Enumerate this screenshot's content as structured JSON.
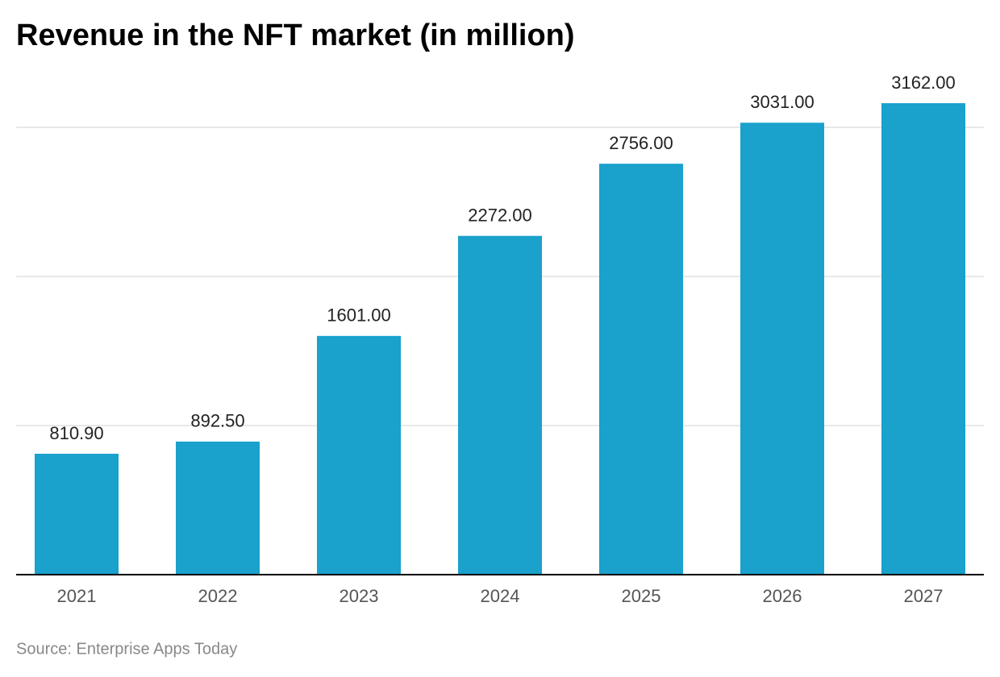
{
  "chart_data": {
    "type": "bar",
    "title": "Revenue in the NFT market (in million)",
    "categories": [
      "2021",
      "2022",
      "2023",
      "2024",
      "2025",
      "2026",
      "2027"
    ],
    "values": [
      810.9,
      892.5,
      1601,
      2272,
      2756,
      3031,
      3162
    ],
    "value_labels": [
      "810.90",
      "892.50",
      "1601.00",
      "2272.00",
      "2756.00",
      "3031.00",
      "3162.00"
    ],
    "color": "#1aa1cc",
    "ylim": [
      0,
      3500
    ],
    "yticks": [
      0,
      1000,
      2000,
      3000
    ],
    "grid": true,
    "source": "Source: Enterprise Apps Today"
  }
}
